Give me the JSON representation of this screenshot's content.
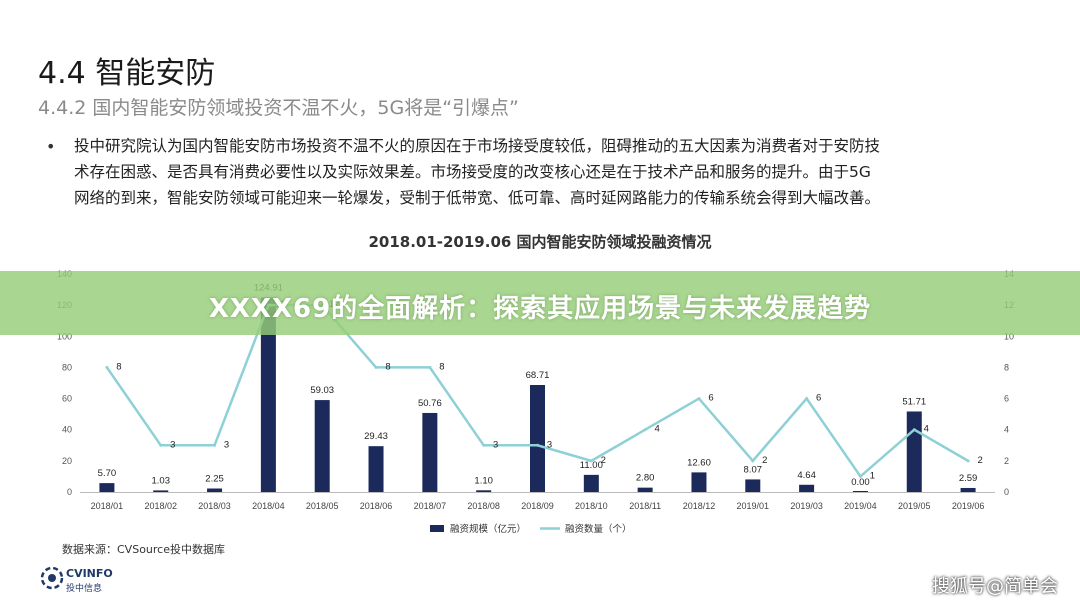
{
  "heading": {
    "title": "4.4 智能安防",
    "subtitle": "4.4.2 国内智能安防领域投资不温不火，5G将是“引爆点”"
  },
  "bullet": {
    "marker": "•",
    "lines": [
      "投中研究院认为国内智能安防市场投资不温不火的原因在于市场接受度较低，阻碍推动的五大因素为消费者对于安防技",
      "术存在困惑、是否具有消费必要性以及实际效果差。市场接受度的改变核心还是在于技术产品和服务的提升。由于5G",
      "网络的到来，智能安防领域可能迎来一轮爆发，受制于低带宽、低可靠、高时延网路能力的传输系统会得到大幅改善。"
    ]
  },
  "chart_data": {
    "type": "bar",
    "title": "2018.01-2019.06 国内智能安防领域投融资情况",
    "categories": [
      "2018/01",
      "2018/02",
      "2018/03",
      "2018/04",
      "2018/05",
      "2018/06",
      "2018/07",
      "2018/08",
      "2018/09",
      "2018/10",
      "2018/11",
      "2018/12",
      "2019/01",
      "2019/03",
      "2019/04",
      "2019/05",
      "2019/06"
    ],
    "series": [
      {
        "name": "融资规模（亿元）",
        "type": "bar",
        "axis": "left",
        "values": [
          5.7,
          1.03,
          2.25,
          124.91,
          59.03,
          29.43,
          50.76,
          1.1,
          68.71,
          11.0,
          2.8,
          12.6,
          8.07,
          4.64,
          0.0,
          51.71,
          2.59
        ],
        "labels": [
          "5.70",
          "1.03",
          "2.25",
          "124.91",
          "59.03",
          "29.43",
          "50.76",
          "1.10",
          "68.71",
          "11.00",
          "2.80",
          "12.60",
          "8.07",
          "4.64",
          "0.00",
          "51.71",
          "2.59"
        ]
      },
      {
        "name": "融资数量（个）",
        "type": "line",
        "axis": "right",
        "values": [
          8,
          3,
          3,
          12,
          12,
          8,
          8,
          3,
          3,
          2,
          4,
          6,
          2,
          6,
          1,
          4,
          2
        ]
      }
    ],
    "left_axis": {
      "ylim": [
        0,
        140
      ],
      "ticks": [
        "0",
        "20",
        "40",
        "60",
        "80",
        "100",
        "120",
        "140"
      ]
    },
    "right_axis": {
      "ylim": [
        0,
        14
      ],
      "ticks": [
        "0",
        "2",
        "4",
        "6",
        "8",
        "10",
        "12",
        "14"
      ]
    },
    "colors": {
      "bar": "#1b2a5a",
      "line": "#8dd0d6"
    },
    "legend": "bottom-center",
    "grid": false
  },
  "footer": {
    "source": "数据来源：CVSource投中数据库",
    "logo_name": "CVINFO",
    "logo_sub": "投中信息"
  },
  "overlay": {
    "banner": "XXXX69的全面解析：探索其应用场景与未来发展趋势",
    "watermark": "搜狐号@简单会"
  }
}
